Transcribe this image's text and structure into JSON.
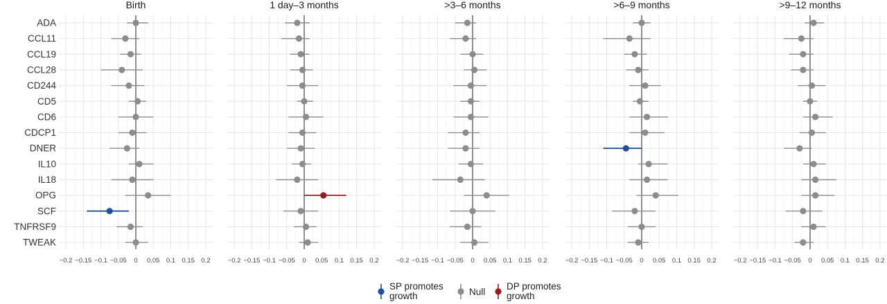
{
  "chart_data": {
    "type": "scatter",
    "subtype": "forest-plot-faceted",
    "proteins": [
      "ADA",
      "CCL11",
      "CCL19",
      "CCL28",
      "CD244",
      "CD5",
      "CD6",
      "CDCP1",
      "DNER",
      "IL10",
      "IL18",
      "OPG",
      "SCF",
      "TNFRSF9",
      "TWEAK"
    ],
    "x_ticks": [
      -0.2,
      -0.15,
      -0.1,
      -0.05,
      0,
      0.05,
      0.1,
      0.15,
      0.2
    ],
    "x_tick_labels": [
      "−0.2",
      "−0.15",
      "−0.1",
      "−0.05",
      "0",
      "0.05",
      "0.1",
      "0.15",
      "0.2"
    ],
    "xlim": [
      -0.22,
      0.22
    ],
    "grid": true,
    "legend_placement": "bottom",
    "colors": {
      "sp": "#1f4e9a",
      "null": "#8c8c8c",
      "dp": "#a3171c"
    },
    "legend": [
      {
        "key": "sp",
        "label_lines": [
          "SP promotes",
          "growth"
        ]
      },
      {
        "key": "null",
        "label_lines": [
          "Null"
        ]
      },
      {
        "key": "dp",
        "label_lines": [
          "DP promotes",
          "growth"
        ]
      }
    ],
    "facets": [
      {
        "title": "Birth",
        "points": [
          {
            "est": 0.0,
            "lo": -0.025,
            "hi": 0.035,
            "group": "null"
          },
          {
            "est": -0.03,
            "lo": -0.07,
            "hi": 0.01,
            "group": "null"
          },
          {
            "est": -0.015,
            "lo": -0.045,
            "hi": 0.015,
            "group": "null"
          },
          {
            "est": -0.04,
            "lo": -0.1,
            "hi": 0.02,
            "group": "null"
          },
          {
            "est": -0.02,
            "lo": -0.07,
            "hi": 0.025,
            "group": "null"
          },
          {
            "est": 0.005,
            "lo": -0.02,
            "hi": 0.03,
            "group": "null"
          },
          {
            "est": 0.0,
            "lo": -0.05,
            "hi": 0.05,
            "group": "null"
          },
          {
            "est": -0.01,
            "lo": -0.05,
            "hi": 0.03,
            "group": "null"
          },
          {
            "est": -0.025,
            "lo": -0.075,
            "hi": 0.01,
            "group": "null"
          },
          {
            "est": 0.01,
            "lo": -0.02,
            "hi": 0.05,
            "group": "null"
          },
          {
            "est": -0.01,
            "lo": -0.07,
            "hi": 0.05,
            "group": "null"
          },
          {
            "est": 0.035,
            "lo": -0.03,
            "hi": 0.1,
            "group": "null"
          },
          {
            "est": -0.075,
            "lo": -0.14,
            "hi": -0.02,
            "group": "sp"
          },
          {
            "est": -0.015,
            "lo": -0.055,
            "hi": 0.02,
            "group": "null"
          },
          {
            "est": 0.0,
            "lo": -0.03,
            "hi": 0.035,
            "group": "null"
          }
        ]
      },
      {
        "title": "1 day–3 months",
        "points": [
          {
            "est": -0.02,
            "lo": -0.055,
            "hi": 0.015,
            "group": "null"
          },
          {
            "est": -0.015,
            "lo": -0.065,
            "hi": 0.015,
            "group": "null"
          },
          {
            "est": -0.01,
            "lo": -0.04,
            "hi": 0.015,
            "group": "null"
          },
          {
            "est": -0.005,
            "lo": -0.04,
            "hi": 0.025,
            "group": "null"
          },
          {
            "est": -0.005,
            "lo": -0.05,
            "hi": 0.04,
            "group": "null"
          },
          {
            "est": 0.0,
            "lo": -0.02,
            "hi": 0.025,
            "group": "null"
          },
          {
            "est": 0.005,
            "lo": -0.045,
            "hi": 0.055,
            "group": "null"
          },
          {
            "est": -0.005,
            "lo": -0.045,
            "hi": 0.035,
            "group": "null"
          },
          {
            "est": -0.01,
            "lo": -0.05,
            "hi": 0.03,
            "group": "null"
          },
          {
            "est": -0.005,
            "lo": -0.035,
            "hi": 0.02,
            "group": "null"
          },
          {
            "est": -0.02,
            "lo": -0.08,
            "hi": 0.04,
            "group": "null"
          },
          {
            "est": 0.055,
            "lo": 0.0,
            "hi": 0.12,
            "group": "dp"
          },
          {
            "est": -0.01,
            "lo": -0.06,
            "hi": 0.04,
            "group": "null"
          },
          {
            "est": 0.005,
            "lo": -0.03,
            "hi": 0.035,
            "group": "null"
          },
          {
            "est": 0.01,
            "lo": -0.015,
            "hi": 0.04,
            "group": "null"
          }
        ]
      },
      {
        "title": ">3–6 months",
        "points": [
          {
            "est": -0.015,
            "lo": -0.05,
            "hi": 0.01,
            "group": "null"
          },
          {
            "est": -0.02,
            "lo": -0.065,
            "hi": 0.01,
            "group": "null"
          },
          {
            "est": 0.0,
            "lo": -0.035,
            "hi": 0.03,
            "group": "null"
          },
          {
            "est": 0.005,
            "lo": -0.025,
            "hi": 0.04,
            "group": "null"
          },
          {
            "est": -0.005,
            "lo": -0.055,
            "hi": 0.04,
            "group": "null"
          },
          {
            "est": -0.005,
            "lo": -0.035,
            "hi": 0.02,
            "group": "null"
          },
          {
            "est": -0.005,
            "lo": -0.055,
            "hi": 0.045,
            "group": "null"
          },
          {
            "est": -0.02,
            "lo": -0.07,
            "hi": 0.02,
            "group": "null"
          },
          {
            "est": -0.02,
            "lo": -0.07,
            "hi": 0.02,
            "group": "null"
          },
          {
            "est": -0.005,
            "lo": -0.04,
            "hi": 0.03,
            "group": "null"
          },
          {
            "est": -0.035,
            "lo": -0.115,
            "hi": 0.035,
            "group": "null"
          },
          {
            "est": 0.04,
            "lo": -0.025,
            "hi": 0.105,
            "group": "null"
          },
          {
            "est": 0.0,
            "lo": -0.065,
            "hi": 0.065,
            "group": "null"
          },
          {
            "est": -0.015,
            "lo": -0.065,
            "hi": 0.025,
            "group": "null"
          },
          {
            "est": 0.005,
            "lo": -0.035,
            "hi": 0.045,
            "group": "null"
          }
        ]
      },
      {
        "title": ">6–9 months",
        "points": [
          {
            "est": 0.0,
            "lo": -0.025,
            "hi": 0.025,
            "group": "null"
          },
          {
            "est": -0.035,
            "lo": -0.11,
            "hi": 0.025,
            "group": "null"
          },
          {
            "est": -0.02,
            "lo": -0.05,
            "hi": 0.015,
            "group": "null"
          },
          {
            "est": -0.01,
            "lo": -0.045,
            "hi": 0.02,
            "group": "null"
          },
          {
            "est": 0.01,
            "lo": -0.035,
            "hi": 0.055,
            "group": "null"
          },
          {
            "est": -0.005,
            "lo": -0.025,
            "hi": 0.02,
            "group": "null"
          },
          {
            "est": 0.015,
            "lo": -0.035,
            "hi": 0.075,
            "group": "null"
          },
          {
            "est": 0.01,
            "lo": -0.035,
            "hi": 0.065,
            "group": "null"
          },
          {
            "est": -0.045,
            "lo": -0.11,
            "hi": 0.0,
            "group": "sp"
          },
          {
            "est": 0.02,
            "lo": -0.01,
            "hi": 0.075,
            "group": "null"
          },
          {
            "est": 0.015,
            "lo": -0.035,
            "hi": 0.075,
            "group": "null"
          },
          {
            "est": 0.04,
            "lo": -0.015,
            "hi": 0.105,
            "group": "null"
          },
          {
            "est": -0.02,
            "lo": -0.085,
            "hi": 0.04,
            "group": "null"
          },
          {
            "est": 0.0,
            "lo": -0.04,
            "hi": 0.04,
            "group": "null"
          },
          {
            "est": -0.01,
            "lo": -0.04,
            "hi": 0.02,
            "group": "null"
          }
        ]
      },
      {
        "title": ">9–12 months",
        "points": [
          {
            "est": 0.01,
            "lo": -0.015,
            "hi": 0.04,
            "group": "null"
          },
          {
            "est": -0.025,
            "lo": -0.075,
            "hi": 0.01,
            "group": "null"
          },
          {
            "est": -0.02,
            "lo": -0.06,
            "hi": 0.01,
            "group": "null"
          },
          {
            "est": -0.02,
            "lo": -0.055,
            "hi": 0.01,
            "group": "null"
          },
          {
            "est": 0.005,
            "lo": -0.035,
            "hi": 0.045,
            "group": "null"
          },
          {
            "est": 0.0,
            "lo": -0.02,
            "hi": 0.02,
            "group": "null"
          },
          {
            "est": 0.015,
            "lo": -0.02,
            "hi": 0.065,
            "group": "null"
          },
          {
            "est": 0.005,
            "lo": -0.03,
            "hi": 0.045,
            "group": "null"
          },
          {
            "est": -0.03,
            "lo": -0.075,
            "hi": 0.005,
            "group": "null"
          },
          {
            "est": 0.01,
            "lo": -0.02,
            "hi": 0.045,
            "group": "null"
          },
          {
            "est": 0.015,
            "lo": -0.025,
            "hi": 0.075,
            "group": "null"
          },
          {
            "est": 0.015,
            "lo": -0.025,
            "hi": 0.07,
            "group": "null"
          },
          {
            "est": -0.02,
            "lo": -0.07,
            "hi": 0.035,
            "group": "null"
          },
          {
            "est": 0.01,
            "lo": -0.025,
            "hi": 0.045,
            "group": "null"
          },
          {
            "est": -0.02,
            "lo": -0.045,
            "hi": 0.01,
            "group": "null"
          }
        ]
      }
    ]
  }
}
